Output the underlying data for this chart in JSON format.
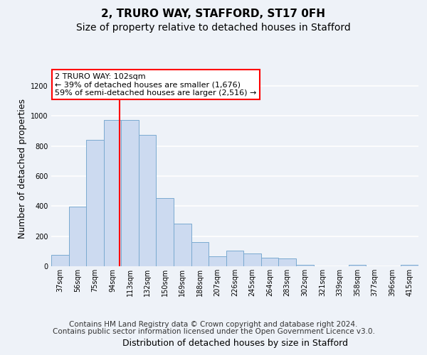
{
  "title1": "2, TRURO WAY, STAFFORD, ST17 0FH",
  "title2": "Size of property relative to detached houses in Stafford",
  "xlabel": "Distribution of detached houses by size in Stafford",
  "ylabel": "Number of detached properties",
  "categories": [
    "37sqm",
    "56sqm",
    "75sqm",
    "94sqm",
    "113sqm",
    "132sqm",
    "150sqm",
    "169sqm",
    "188sqm",
    "207sqm",
    "226sqm",
    "245sqm",
    "264sqm",
    "283sqm",
    "302sqm",
    "321sqm",
    "339sqm",
    "358sqm",
    "377sqm",
    "396sqm",
    "415sqm"
  ],
  "values": [
    75,
    395,
    840,
    975,
    975,
    875,
    455,
    285,
    160,
    65,
    105,
    85,
    55,
    50,
    10,
    0,
    0,
    10,
    0,
    0,
    10
  ],
  "bar_color": "#ccdaf0",
  "bar_edge_color": "#7aaad0",
  "annotation_text": "2 TRURO WAY: 102sqm\n← 39% of detached houses are smaller (1,676)\n59% of semi-detached houses are larger (2,516) →",
  "annotation_box_color": "white",
  "annotation_box_edge_color": "red",
  "vline_color": "red",
  "ylim": [
    0,
    1300
  ],
  "yticks": [
    0,
    200,
    400,
    600,
    800,
    1000,
    1200
  ],
  "footer_line1": "Contains HM Land Registry data © Crown copyright and database right 2024.",
  "footer_line2": "Contains public sector information licensed under the Open Government Licence v3.0.",
  "background_color": "#eef2f8",
  "plot_bg_color": "#eef2f8",
  "grid_color": "white",
  "title1_fontsize": 11,
  "title2_fontsize": 10,
  "axis_label_fontsize": 9,
  "tick_fontsize": 7,
  "footer_fontsize": 7.5,
  "annotation_fontsize": 8
}
